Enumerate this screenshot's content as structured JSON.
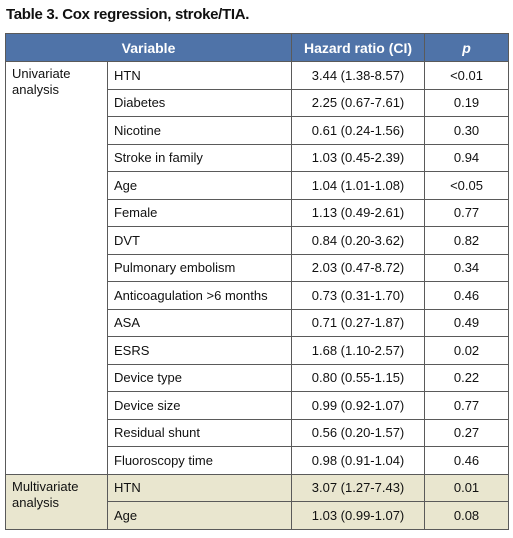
{
  "title": "Table 3. Cox regression, stroke/TIA.",
  "table": {
    "header": [
      "Variable",
      "Hazard ratio (CI)",
      "p"
    ],
    "groups": [
      {
        "label": "Univariate analysis",
        "rows": [
          [
            "HTN",
            "3.44 (1.38-8.57)",
            "<0.01"
          ],
          [
            "Diabetes",
            "2.25 (0.67-7.61)",
            "0.19"
          ],
          [
            "Nicotine",
            "0.61 (0.24-1.56)",
            "0.30"
          ],
          [
            "Stroke in family",
            "1.03 (0.45-2.39)",
            "0.94"
          ],
          [
            "Age",
            "1.04 (1.01-1.08)",
            "<0.05"
          ],
          [
            "Female",
            "1.13 (0.49-2.61)",
            "0.77"
          ],
          [
            "DVT",
            "0.84 (0.20-3.62)",
            "0.82"
          ],
          [
            "Pulmonary embolism",
            "2.03 (0.47-8.72)",
            "0.34"
          ],
          [
            "Anticoagulation >6 months",
            "0.73 (0.31-1.70)",
            "0.46"
          ],
          [
            "ASA",
            "0.71 (0.27-1.87)",
            "0.49"
          ],
          [
            "ESRS",
            "1.68 (1.10-2.57)",
            "0.02"
          ],
          [
            "Device type",
            "0.80 (0.55-1.15)",
            "0.22"
          ],
          [
            "Device size",
            "0.99 (0.92-1.07)",
            "0.77"
          ],
          [
            "Residual shunt",
            "0.56 (0.20-1.57)",
            "0.27"
          ],
          [
            "Fluoroscopy time",
            "0.98 (0.91-1.04)",
            "0.46"
          ]
        ]
      },
      {
        "label": "Multivariate analysis",
        "rows": [
          [
            "HTN",
            "3.07 (1.27-7.43)",
            "0.01"
          ],
          [
            "Age",
            "1.03 (0.99-1.07)",
            "0.08"
          ]
        ]
      }
    ]
  }
}
